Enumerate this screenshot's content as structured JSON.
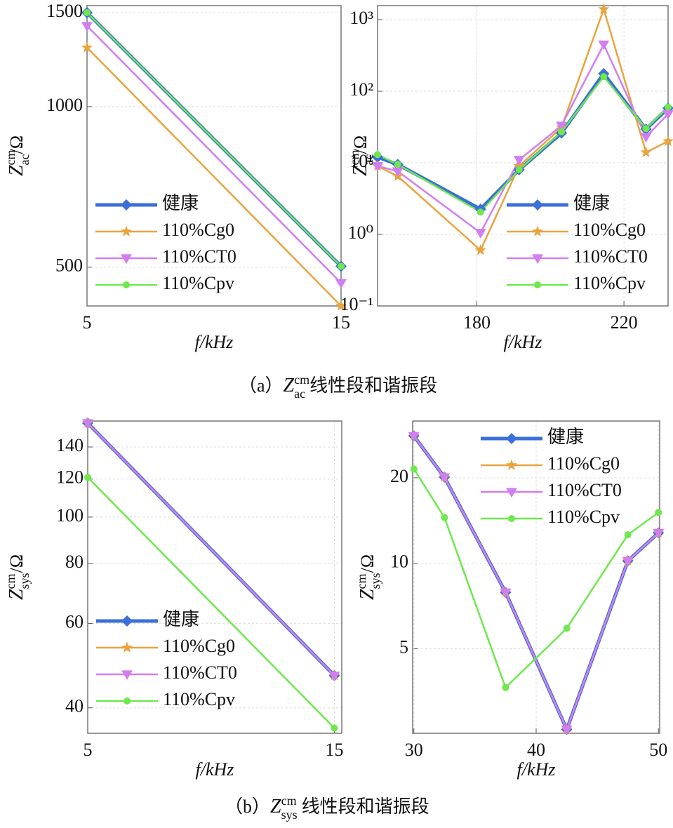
{
  "chart_data": [
    {
      "type": "line",
      "yscale": "log",
      "grid": true,
      "legend": "lower left",
      "xlabel": "f/kHz",
      "ylabel": {
        "symbol": "Z",
        "sup": "cm",
        "sub": "ac",
        "unit": "/Ω"
      },
      "x": [
        5,
        15
      ],
      "xlim": [
        5,
        15
      ],
      "xticks": [
        5,
        15
      ],
      "ylim": [
        423,
        1546
      ],
      "yticks": [
        500,
        1000,
        1500
      ],
      "series": [
        {
          "name": "健康",
          "color": "#3b6fd9",
          "marker": "diamond",
          "values": [
            1500,
            502
          ]
        },
        {
          "name": "110%Cg0",
          "color": "#e9a43e",
          "marker": "star",
          "values": [
            1290,
            423
          ]
        },
        {
          "name": "110%CT0",
          "color": "#d27ef0",
          "marker": "tri-down",
          "values": [
            1416,
            467
          ]
        },
        {
          "name": "110%Cpv",
          "color": "#6ee84c",
          "marker": "dot",
          "values": [
            1500,
            502
          ]
        }
      ]
    },
    {
      "type": "line",
      "yscale": "log",
      "grid": true,
      "legend": "lower right",
      "xlabel": "f/kHz",
      "ylabel": {
        "symbol": "Z",
        "sup": "cm",
        "sub": "ac",
        "unit": "/Ω"
      },
      "x": [
        153,
        158.5,
        181,
        191.5,
        203,
        214.5,
        226,
        232
      ],
      "xlim": [
        153,
        232
      ],
      "xticks": [
        180,
        220
      ],
      "ylim": [
        0.1,
        1570
      ],
      "yticks": [
        {
          "value": 0.1,
          "label": "10⁻¹"
        },
        {
          "value": 1,
          "label": "10⁰"
        },
        {
          "value": 10,
          "label": "10¹"
        },
        {
          "value": 100,
          "label": "10²"
        },
        {
          "value": 1000,
          "label": "10³"
        }
      ],
      "series": [
        {
          "name": "健康",
          "color": "#3b6fd9",
          "marker": "diamond",
          "values": [
            12,
            9.5,
            2.25,
            8,
            26,
            176,
            29.5,
            58
          ]
        },
        {
          "name": "110%Cg0",
          "color": "#e9a43e",
          "marker": "star",
          "values": [
            9,
            6.5,
            0.6,
            9,
            31,
            1400,
            14,
            20
          ]
        },
        {
          "name": "110%CT0",
          "color": "#d27ef0",
          "marker": "tri-down",
          "values": [
            9,
            7.6,
            1.05,
            11,
            33,
            450,
            23,
            48
          ]
        },
        {
          "name": "110%Cpv",
          "color": "#6ee84c",
          "marker": "dot",
          "values": [
            13,
            9.5,
            2.05,
            8,
            27,
            160,
            30,
            60
          ]
        }
      ]
    },
    {
      "type": "line",
      "yscale": "log",
      "grid": true,
      "legend": "lower left",
      "xlabel": "f/kHz",
      "ylabel": {
        "symbol": "Z",
        "sup": "cm",
        "sub": "sys",
        "unit": "/Ω"
      },
      "x": [
        5,
        15
      ],
      "xlim": [
        5,
        15.3
      ],
      "xticks": [
        5,
        15
      ],
      "ylim": [
        35.4,
        158.6
      ],
      "yticks": [
        40,
        60,
        80,
        100,
        120,
        140
      ],
      "series": [
        {
          "name": "健康",
          "color": "#3b6fd9",
          "marker": "diamond",
          "values": [
            157,
            46.7
          ]
        },
        {
          "name": "110%Cg0",
          "color": "#e9a43e",
          "marker": "star",
          "values": [
            157,
            46.7
          ]
        },
        {
          "name": "110%CT0",
          "color": "#d27ef0",
          "marker": "tri-down",
          "values": [
            157,
            46.7
          ]
        },
        {
          "name": "110%Cpv",
          "color": "#6ee84c",
          "marker": "dot",
          "values": [
            121,
            36.3
          ]
        }
      ]
    },
    {
      "type": "line",
      "yscale": "log",
      "grid": true,
      "legend": "upper right",
      "xlabel": "f/kHz",
      "ylabel": {
        "symbol": "Z",
        "sup": "cm",
        "sub": "sys",
        "unit": "/Ω"
      },
      "x": [
        30,
        32.5,
        37.5,
        42.5,
        47.5,
        50
      ],
      "xlim": [
        29.9,
        50.1
      ],
      "xticks": [
        30,
        40,
        50
      ],
      "ylim": [
        2.52,
        31.7
      ],
      "yticks": [
        5,
        10,
        20
      ],
      "series": [
        {
          "name": "健康",
          "color": "#3b6fd9",
          "marker": "diamond",
          "values": [
            28.1,
            20.1,
            7.9,
            2.6,
            10.2,
            12.8
          ]
        },
        {
          "name": "110%Cg0",
          "color": "#e9a43e",
          "marker": "star",
          "values": [
            28.1,
            20.1,
            7.9,
            2.6,
            10.2,
            12.8
          ]
        },
        {
          "name": "110%CT0",
          "color": "#d27ef0",
          "marker": "tri-down",
          "values": [
            28.1,
            20.1,
            7.9,
            2.6,
            10.2,
            12.8
          ]
        },
        {
          "name": "110%Cpv",
          "color": "#6ee84c",
          "marker": "dot",
          "values": [
            21.5,
            14.5,
            3.65,
            5.9,
            12.6,
            15.1
          ]
        }
      ]
    }
  ],
  "captions": [
    {
      "prefix": "（a）",
      "symbol": "Z",
      "sup": "cm",
      "sub": "ac",
      "text": "线性段和谐振段"
    },
    {
      "prefix": "（b）",
      "symbol": "Z",
      "sup": "cm",
      "sub": "sys",
      "text": "线性段和谐振段"
    }
  ]
}
